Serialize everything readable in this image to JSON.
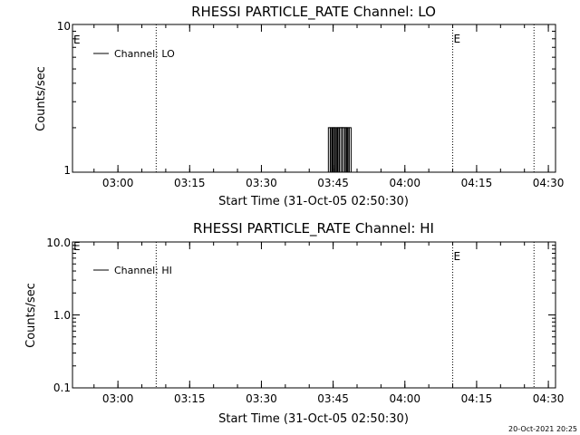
{
  "footer": {
    "timestamp": "20-Oct-2021 20:25"
  },
  "chart_data": [
    {
      "type": "line",
      "title": "RHESSI PARTICLE_RATE Channel: LO",
      "xlabel": "Start Time (31-Oct-05 02:50:30)",
      "ylabel": "Counts/sec",
      "x_ticks": [
        "03:00",
        "03:15",
        "03:30",
        "03:45",
        "04:00",
        "04:15",
        "04:30"
      ],
      "x_range_minutes_after_start": [
        0,
        101
      ],
      "y_scale": "log",
      "ylim": [
        1,
        10
      ],
      "y_ticks": [
        "1",
        "10"
      ],
      "legend": {
        "position": "top-left",
        "entries": [
          "Channel: LO"
        ]
      },
      "grid": false,
      "series": [
        {
          "name": "Channel: LO",
          "step_points": [
            {
              "t": "03:43:30",
              "v": 1
            },
            {
              "t": "03:44:00",
              "v": 2
            },
            {
              "t": "03:44:30",
              "v": 1
            },
            {
              "t": "03:45:00",
              "v": 2
            },
            {
              "t": "03:45:30",
              "v": 1
            },
            {
              "t": "03:46:00",
              "v": 2
            },
            {
              "t": "03:47:00",
              "v": 1
            },
            {
              "t": "03:47:30",
              "v": 2
            },
            {
              "t": "03:48:00",
              "v": 1
            }
          ]
        }
      ],
      "event_markers": [
        {
          "time": "03:08:00",
          "label": ""
        },
        {
          "time": "04:10:00",
          "label": "E"
        },
        {
          "time": "04:27:00",
          "label": ""
        }
      ],
      "left_marker_label": "E"
    },
    {
      "type": "line",
      "title": "RHESSI PARTICLE_RATE Channel: HI",
      "xlabel": "Start Time (31-Oct-05 02:50:30)",
      "ylabel": "Counts/sec",
      "x_ticks": [
        "03:00",
        "03:15",
        "03:30",
        "03:45",
        "04:00",
        "04:15",
        "04:30"
      ],
      "x_range_minutes_after_start": [
        0,
        101
      ],
      "y_scale": "log",
      "ylim": [
        0.1,
        10
      ],
      "y_ticks": [
        "0.1",
        "1.0",
        "10.0"
      ],
      "legend": {
        "position": "top-left",
        "entries": [
          "Channel: HI"
        ]
      },
      "grid": false,
      "series": [
        {
          "name": "Channel: HI",
          "step_points": []
        }
      ],
      "event_markers": [
        {
          "time": "03:08:00",
          "label": ""
        },
        {
          "time": "04:10:00",
          "label": "E"
        },
        {
          "time": "04:27:00",
          "label": ""
        }
      ],
      "left_marker_label": "E"
    }
  ]
}
